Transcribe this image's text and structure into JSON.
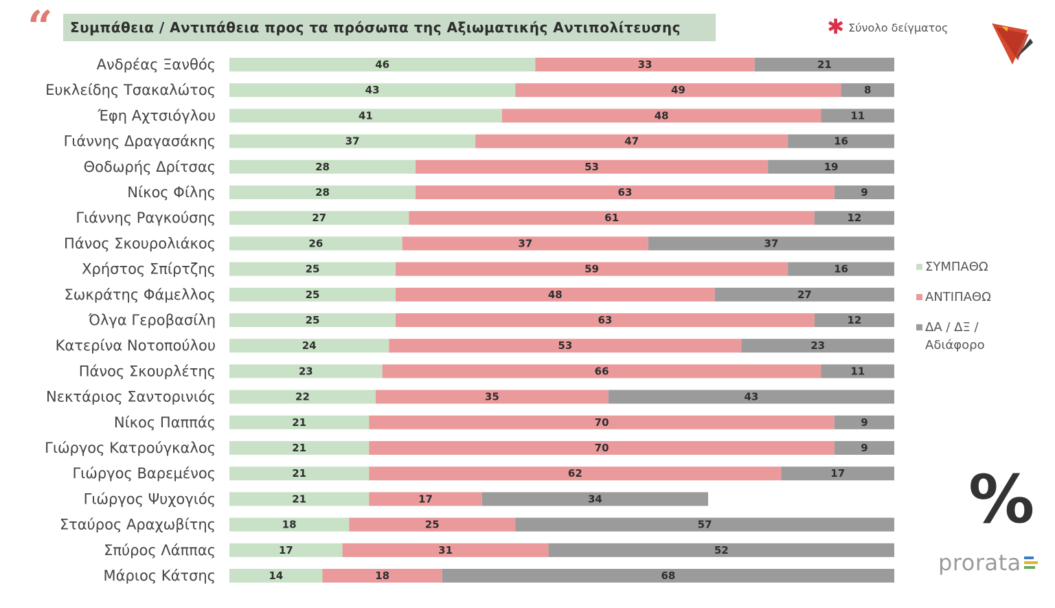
{
  "header": {
    "title": "Συμπάθεια / Αντιπάθεια προς τα πρόσωπα της Αξιωματικής Αντιπολίτευσης",
    "note": "Σύνολο δείγματος"
  },
  "legend": {
    "items": [
      {
        "label": "ΣΥΜΠΑΘΩ",
        "color": "#c9e2c7"
      },
      {
        "label": "ΑΝΤΙΠΑΘΩ",
        "color": "#eb9a9c"
      },
      {
        "label": "ΔΑ / ΔΞ / Αδιάφορο",
        "color": "#9b9b9b"
      }
    ]
  },
  "percent_symbol": "%",
  "brand": {
    "name": "prorata"
  },
  "chart_data": {
    "type": "bar",
    "orientation": "horizontal",
    "stacked": true,
    "unit": "%",
    "xlim": [
      0,
      100
    ],
    "categories": [
      "Ανδρέας Ξανθός",
      "Ευκλείδης Τσακαλώτος",
      "Έφη Αχτσιόγλου",
      "Γιάννης Δραγασάκης",
      "Θοδωρής Δρίτσας",
      "Νίκος Φίλης",
      "Γιάννης Ραγκούσης",
      "Πάνος Σκουρολιάκος",
      "Χρήστος Σπίρτζης",
      "Σωκράτης Φάμελλος",
      "Όλγα Γεροβασίλη",
      "Κατερίνα Νοτοπούλου",
      "Πάνος Σκουρλέτης",
      "Νεκτάριος Σαντορινιός",
      "Νίκος Παππάς",
      "Γιώργος Κατρούγκαλος",
      "Γιώργος Βαρεμένος",
      "Γιώργος Ψυχογιός",
      "Σταύρος Αραχωβίτης",
      "Σπύρος Λάππας",
      "Μάριος Κάτσης"
    ],
    "series": [
      {
        "name": "ΣΥΜΠΑΘΩ",
        "color": "#c9e2c7",
        "values": [
          46,
          43,
          41,
          37,
          28,
          28,
          27,
          26,
          25,
          25,
          25,
          24,
          23,
          22,
          21,
          21,
          21,
          21,
          18,
          17,
          14
        ]
      },
      {
        "name": "ΑΝΤΙΠΑΘΩ",
        "color": "#eb9a9c",
        "values": [
          33,
          49,
          48,
          47,
          53,
          63,
          61,
          37,
          59,
          48,
          63,
          53,
          66,
          35,
          70,
          70,
          62,
          17,
          25,
          31,
          18
        ]
      },
      {
        "name": "ΔΑ / ΔΞ / Αδιάφορο",
        "color": "#9b9b9b",
        "values": [
          21,
          8,
          11,
          16,
          19,
          9,
          12,
          37,
          16,
          27,
          12,
          23,
          11,
          43,
          9,
          9,
          17,
          34,
          57,
          52,
          68
        ]
      }
    ]
  }
}
